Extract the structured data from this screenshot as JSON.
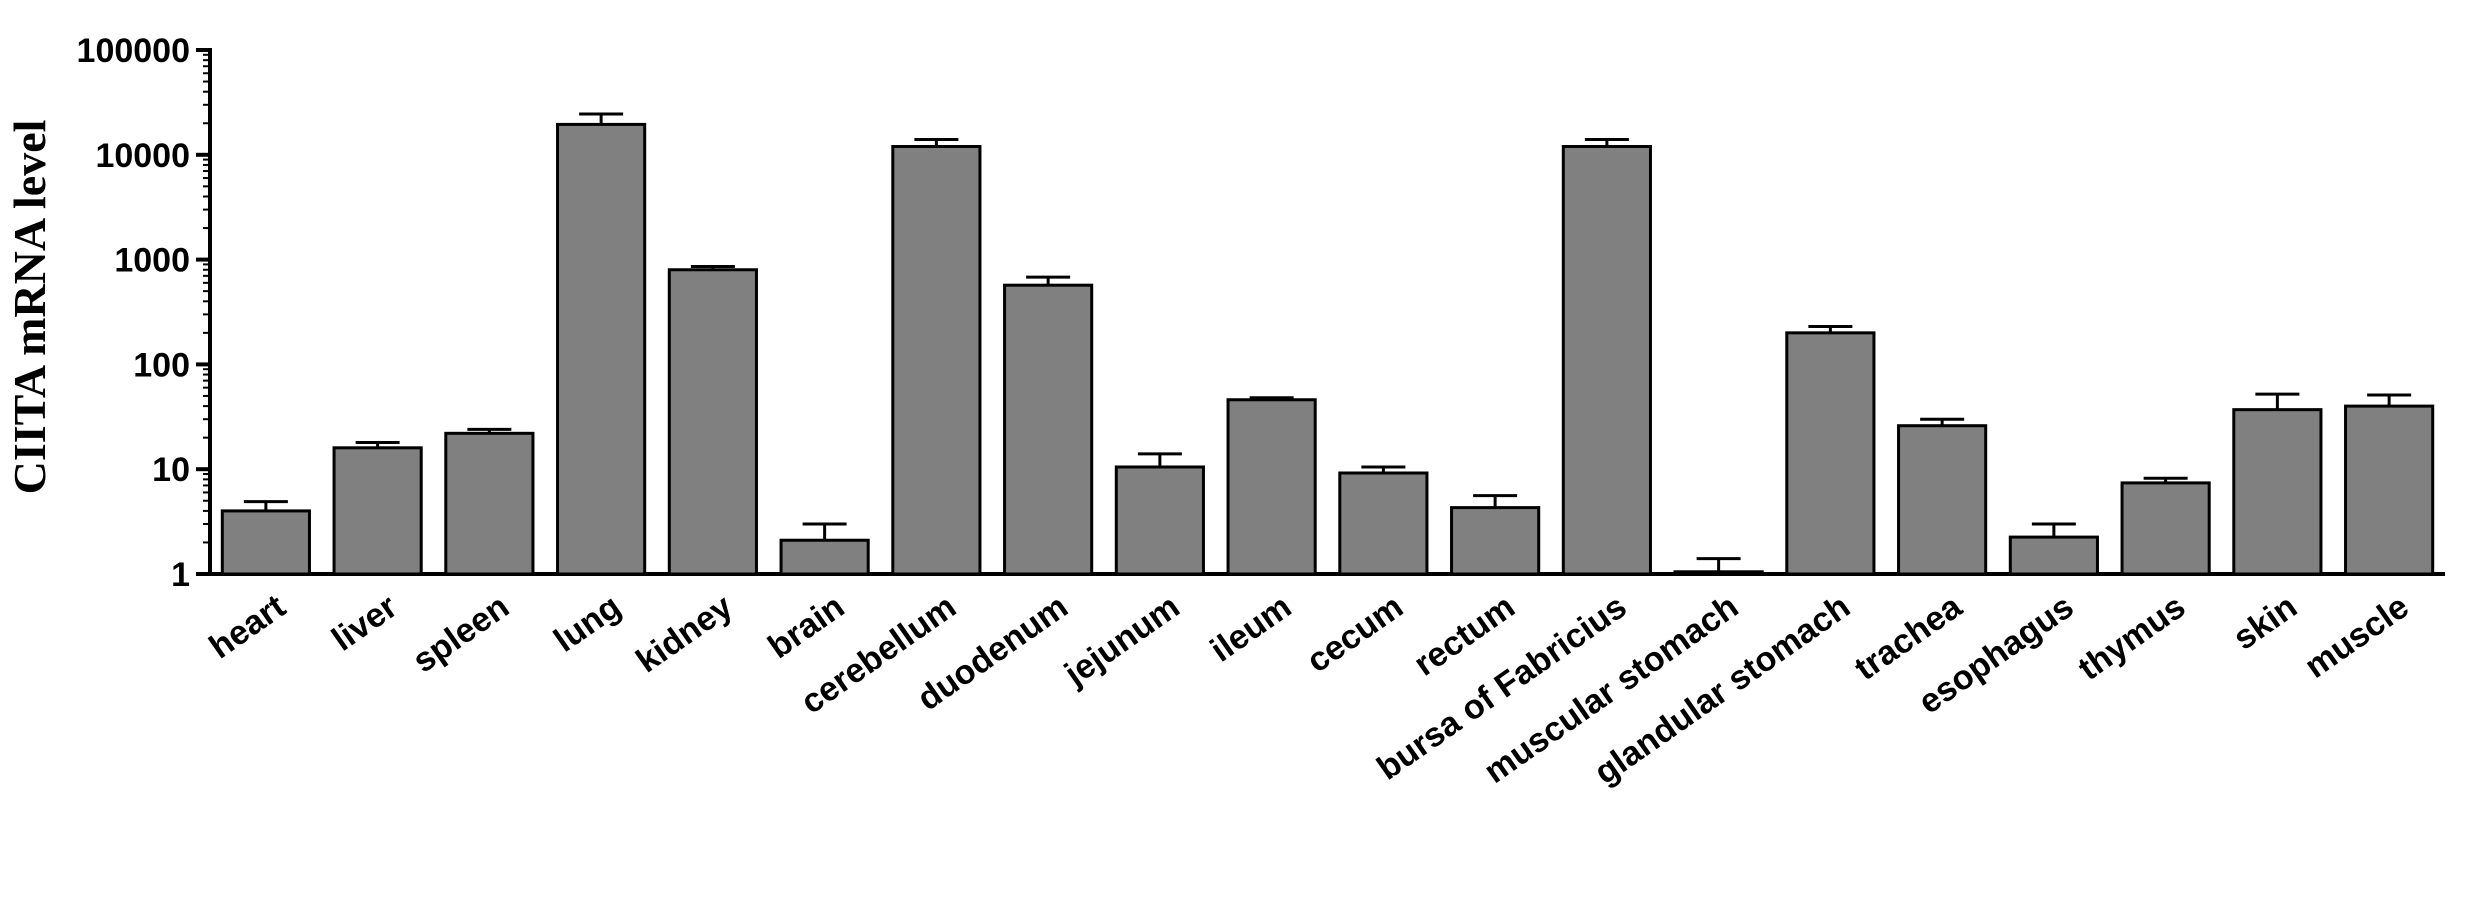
{
  "chart_data": {
    "type": "bar",
    "yscale": "log",
    "ylim": [
      1,
      100000
    ],
    "yticks": [
      "1",
      "10",
      "100",
      "1000",
      "10000",
      "100000"
    ],
    "ylabel": "CIITA mRNA level",
    "xlabel": "",
    "title": "",
    "grid": false,
    "bar_color": "#808080",
    "categories": [
      "heart",
      "liver",
      "spleen",
      "lung",
      "kidney",
      "brain",
      "cerebellum",
      "duodenum",
      "jejunum",
      "ileum",
      "cecum",
      "rectum",
      "bursa of Fabricius",
      "muscular stomach",
      "glandular stomach",
      "trachea",
      "esophagus",
      "thymus",
      "skin",
      "muscle"
    ],
    "values": [
      4,
      16,
      22,
      19500,
      800,
      2.1,
      12000,
      570,
      10.5,
      46,
      9.2,
      4.3,
      12000,
      1.05,
      200,
      26,
      2.25,
      7.4,
      37,
      40
    ],
    "error_upper": [
      4.9,
      18,
      24,
      24500,
      860,
      3.0,
      14000,
      680,
      14,
      48,
      10.5,
      5.6,
      14000,
      1.4,
      230,
      30,
      3.0,
      8.2,
      52,
      51
    ]
  }
}
